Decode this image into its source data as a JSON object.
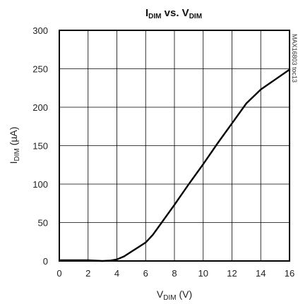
{
  "chart_data": {
    "type": "line",
    "title": {
      "main": "I",
      "main_sub": "DIM",
      "vs": " vs. ",
      "var": "V",
      "var_sub": "DIM"
    },
    "xlabel": {
      "main": "V",
      "sub": "DIM",
      "unit": " (V)"
    },
    "ylabel": {
      "main": "I",
      "sub": "DIM",
      "unit": " (µA)"
    },
    "side_label": "MAX16803 toc13",
    "xlim": [
      0,
      16
    ],
    "ylim": [
      0,
      300
    ],
    "xticks": [
      "0",
      "2",
      "4",
      "6",
      "8",
      "10",
      "12",
      "14",
      "16"
    ],
    "yticks": [
      "0",
      "50",
      "100",
      "150",
      "200",
      "250",
      "300"
    ],
    "grid": true,
    "series": [
      {
        "color": "#000000",
        "x": [
          0,
          1,
          2,
          2.5,
          3,
          3.5,
          4,
          4.5,
          5,
          5.5,
          6,
          6.5,
          7,
          8,
          9,
          10,
          11,
          12,
          13,
          14,
          15,
          16
        ],
        "y": [
          1,
          1,
          1,
          0.5,
          0,
          0.5,
          2,
          6,
          12,
          18,
          24,
          34,
          47,
          73,
          100,
          126,
          153,
          179,
          205,
          223,
          236,
          249
        ]
      }
    ]
  }
}
